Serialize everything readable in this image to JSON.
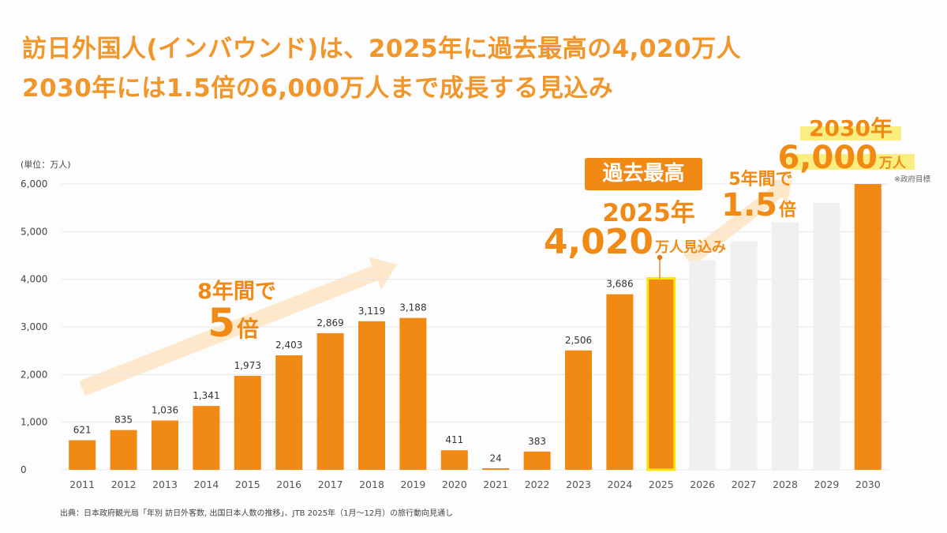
{
  "title": {
    "line1": "訪日外国人(インバウンド)は、2025年に過去最高の4,020万人",
    "line2": "2030年には1.5倍の6,000万人まで成長する見込み"
  },
  "colors": {
    "accent": "#f08a14",
    "title": "#f0962a",
    "projected_bar": "#f0f0f0",
    "highlight_outline": "#f6e80a",
    "highlight_bg": "#fbee80",
    "arrow": "#fde8cc",
    "grid": "#e6e6e6"
  },
  "chart_data": {
    "type": "bar",
    "title": "訪日外国人(インバウンド)は、2025年に過去最高の4,020万人 / 2030年には1.5倍の6,000万人まで成長する見込み",
    "unit_label": "(単位：万人)",
    "xlabel": "",
    "ylabel": "万人",
    "ylim": [
      0,
      6000
    ],
    "yticks": [
      0,
      1000,
      2000,
      3000,
      4000,
      5000,
      6000
    ],
    "ytick_labels": [
      "0",
      "1,000",
      "2,000",
      "3,000",
      "4,000",
      "5,000",
      "6,000"
    ],
    "grid": true,
    "categories": [
      "2011",
      "2012",
      "2013",
      "2014",
      "2015",
      "2016",
      "2017",
      "2018",
      "2019",
      "2020",
      "2021",
      "2022",
      "2023",
      "2024",
      "2025",
      "2026",
      "2027",
      "2028",
      "2029",
      "2030"
    ],
    "values": [
      621,
      835,
      1036,
      1341,
      1973,
      2403,
      2869,
      3119,
      3188,
      411,
      24,
      383,
      2506,
      3686,
      4020,
      4400,
      4800,
      5200,
      5600,
      6000
    ],
    "data_labels": [
      "621",
      "835",
      "1,036",
      "1,341",
      "1,973",
      "2,403",
      "2,869",
      "3,119",
      "3,188",
      "411",
      "24",
      "383",
      "2,506",
      "3,686",
      "",
      "",
      "",
      "",
      "",
      ""
    ],
    "bar_styles": [
      "actual",
      "actual",
      "actual",
      "actual",
      "actual",
      "actual",
      "actual",
      "actual",
      "actual",
      "actual",
      "actual",
      "actual",
      "actual",
      "actual",
      "highlight",
      "projected",
      "projected",
      "projected",
      "projected",
      "target"
    ],
    "annotations": {
      "growth_8y_line1": "8年間で",
      "growth_8y_big": "5",
      "growth_8y_suffix": "倍",
      "record_badge": "過去最高",
      "record_year": "2025年",
      "record_value": "4,020",
      "record_suffix": "万人見込み",
      "growth_5y_line1": "5年間で",
      "growth_5y_big": "1.5",
      "growth_5y_suffix": "倍",
      "target_year": "2030年",
      "target_value": "6,000",
      "target_suffix": "万人",
      "target_note": "※政府目標"
    }
  },
  "source": "出典：日本政府観光局「年別 訪日外客数, 出国日本人数の推移」、JTB 2025年（1月〜12月）の旅行動向見通し"
}
